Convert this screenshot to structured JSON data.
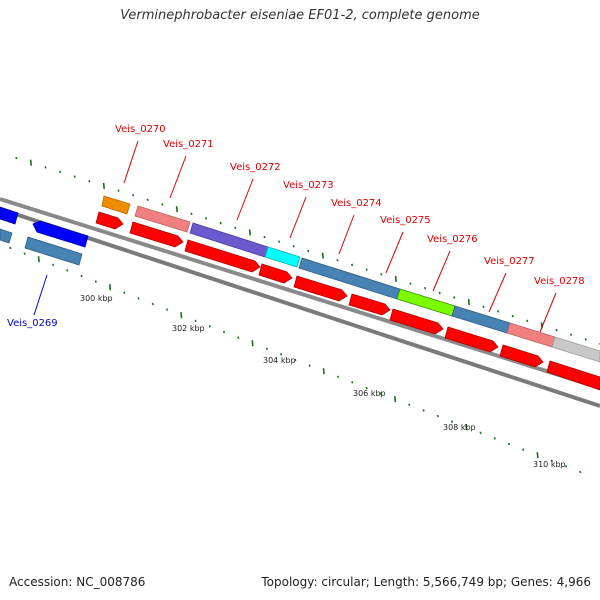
{
  "title": "Verminephrobacter eiseniae EF01-2, complete genome",
  "accession": "Accession: NC_008786",
  "summary": "Topology: circular; Length: 5,566,749 bp; Genes: 4,966",
  "colors": {
    "backbone": "#808080",
    "minor_tick": "#1a6e1a",
    "forward_label": "#dd0000",
    "reverse_label": "#0000cc",
    "cds_red": "#ff0000",
    "orange": "#f08c00",
    "pink": "#f08080",
    "purple": "#6a5acd",
    "cyan": "#00ffff",
    "steelblue": "#4682b4",
    "lime": "#7cfc00",
    "lightgray": "#c8c8c8",
    "blue": "#0000ff"
  },
  "scale_labels": [
    "300 kbp",
    "302 kbp",
    "304 kbp",
    "306 kbp",
    "308 kbp",
    "310 kbp"
  ],
  "gene_labels": [
    {
      "text": "Veis_0269",
      "strand": "reverse"
    },
    {
      "text": "Veis_0270",
      "strand": "forward"
    },
    {
      "text": "Veis_0271",
      "strand": "forward"
    },
    {
      "text": "Veis_0272",
      "strand": "forward"
    },
    {
      "text": "Veis_0273",
      "strand": "forward"
    },
    {
      "text": "Veis_0274",
      "strand": "forward"
    },
    {
      "text": "Veis_0275",
      "strand": "forward"
    },
    {
      "text": "Veis_0276",
      "strand": "forward"
    },
    {
      "text": "Veis_0277",
      "strand": "forward"
    },
    {
      "text": "Veis_0278",
      "strand": "forward"
    }
  ]
}
